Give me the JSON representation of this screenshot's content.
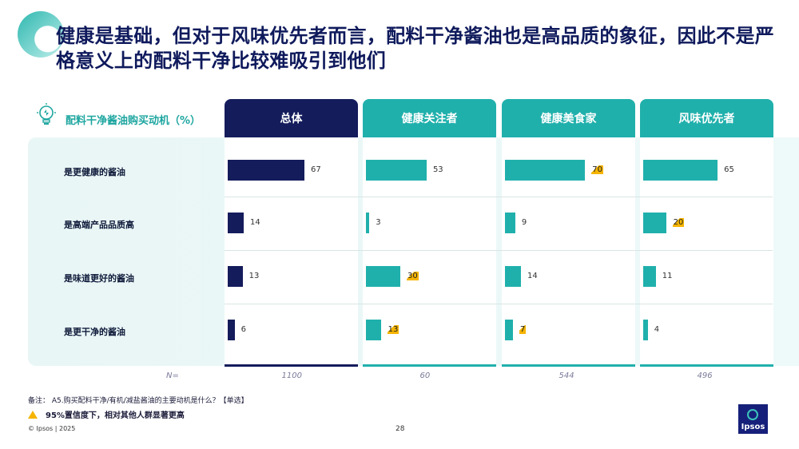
{
  "title": "健康是基础，但对于风味优先者而言，配料干净酱油也是高品质的象征，因此不是严格意义上的配料干净比较难吸引到他们",
  "chart_data": {
    "type": "bar",
    "title": "配料干净酱油购买动机（%）",
    "categories": [
      "是更健康的酱油",
      "是高端产品品质高",
      "是味道更好的酱油",
      "是更干净的酱油"
    ],
    "xlim": [
      0,
      100
    ],
    "series": [
      {
        "name": "总体",
        "color": "#141c5c",
        "n": "1100",
        "values": [
          67,
          14,
          13,
          6
        ],
        "significant": [
          false,
          false,
          false,
          false
        ]
      },
      {
        "name": "健康关注者",
        "color": "#20b0ac",
        "n": "60",
        "values": [
          53,
          3,
          30,
          13
        ],
        "significant": [
          false,
          false,
          true,
          true
        ]
      },
      {
        "name": "健康美食家",
        "color": "#20b0ac",
        "n": "544",
        "values": [
          70,
          9,
          14,
          7
        ],
        "significant": [
          true,
          false,
          false,
          true
        ]
      },
      {
        "name": "风味优先者",
        "color": "#20b0ac",
        "n": "496",
        "values": [
          65,
          20,
          11,
          4
        ],
        "significant": [
          false,
          true,
          false,
          false
        ]
      }
    ],
    "n_label": "N="
  },
  "footer": {
    "note": "备注：  A5.购买配料干净/有机/减盐酱油的主要动机是什么？【单选】",
    "significance": "95%置信度下，相对其他人群显著更高",
    "copyright": "© Ipsos | 2025",
    "page": "28",
    "logo": "Ipsos"
  },
  "colors": {
    "navy": "#141c5c",
    "teal": "#20b0ac",
    "highlight": "#f5b400"
  }
}
